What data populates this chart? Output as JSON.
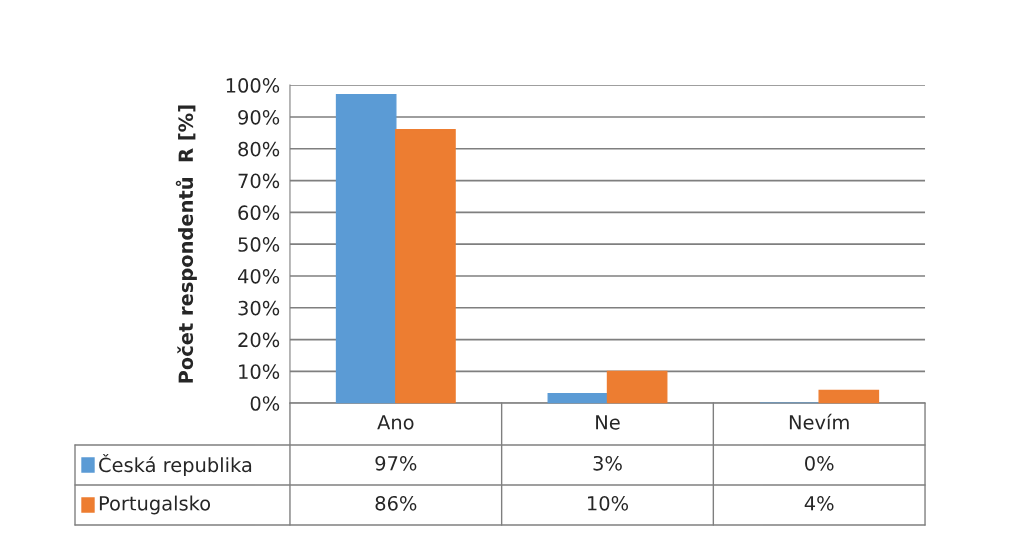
{
  "chart_data": {
    "type": "bar",
    "ylabel": "Počet respondentů  R [%]",
    "categories": [
      "Ano",
      "Ne",
      "Nevím"
    ],
    "series": [
      {
        "name": "Česká republika",
        "color": "#5b9bd5",
        "values": [
          97,
          3,
          0
        ],
        "value_labels": [
          "97%",
          "3%",
          "0%"
        ]
      },
      {
        "name": "Portugalsko",
        "color": "#ed7d31",
        "values": [
          86,
          10,
          4
        ],
        "value_labels": [
          "86%",
          "10%",
          "4%"
        ]
      }
    ],
    "ylim": [
      0,
      100
    ],
    "yticks": [
      {
        "value": 0,
        "label": "0%"
      },
      {
        "value": 10,
        "label": "10%"
      },
      {
        "value": 20,
        "label": "20%"
      },
      {
        "value": 30,
        "label": "30%"
      },
      {
        "value": 40,
        "label": "40%"
      },
      {
        "value": 50,
        "label": "50%"
      },
      {
        "value": 60,
        "label": "60%"
      },
      {
        "value": 70,
        "label": "70%"
      },
      {
        "value": 80,
        "label": "80%"
      },
      {
        "value": 90,
        "label": "90%"
      },
      {
        "value": 100,
        "label": "100%"
      }
    ],
    "grid": "y",
    "legend": "bottom"
  }
}
